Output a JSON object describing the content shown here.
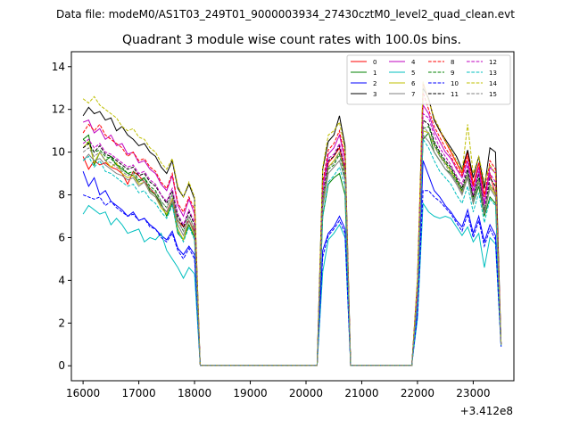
{
  "chart_data": {
    "type": "line",
    "suptitle": "Data file: modeM0/AS1T03_249T01_9000003934_27430cztM0_level2_quad_clean.evt",
    "title": "Quadrant 3 module wise count rates with 100.0s bins.",
    "xlabel": "",
    "ylabel": "",
    "x_offset_label": "+3.412e8",
    "xlim": [
      15790,
      23730
    ],
    "ylim": [
      -0.7,
      14.7
    ],
    "x_ticks": [
      16000,
      17000,
      18000,
      19000,
      20000,
      21000,
      22000,
      23000
    ],
    "x_tick_labels": [
      "16000",
      "17000",
      "18000",
      "19000",
      "20000",
      "21000",
      "22000",
      "23000"
    ],
    "y_ticks": [
      0,
      2,
      4,
      6,
      8,
      10,
      12,
      14
    ],
    "y_tick_labels": [
      "0",
      "2",
      "4",
      "6",
      "8",
      "10",
      "12",
      "14"
    ],
    "grid": false,
    "legend_position": "top-right",
    "legend_columns": 4,
    "bin_width_s": 100,
    "segments": [
      {
        "start": 16000,
        "end": 18100
      },
      {
        "gap_start": 18100,
        "gap_end": 20200
      },
      {
        "start": 20200,
        "end": 20800
      },
      {
        "gap_start": 20800,
        "gap_end": 21900
      },
      {
        "start": 21900,
        "end": 23500
      }
    ],
    "series": [
      {
        "name": "0",
        "color": "#ff0000",
        "dash": "solid",
        "seg1": [
          9.8,
          9.2,
          9.6,
          9.4,
          9.5,
          9.3,
          9.2,
          9.0,
          8.5,
          9.1,
          8.9,
          8.6,
          8.3,
          8.0,
          7.5,
          7.2,
          7.8,
          6.8,
          6.5,
          6.8,
          6.3,
          0.1
        ],
        "seg2": [
          0.1,
          7.5,
          9.5,
          9.8,
          10.2,
          9.2,
          0.1
        ],
        "seg3": [
          0.1,
          3.5,
          13.2,
          12.5,
          11.5,
          11.0,
          10.5,
          10.0,
          9.5,
          9.0,
          10.0,
          8.5,
          9.5,
          8.0,
          9.0,
          8.0,
          1.0
        ]
      },
      {
        "name": "1",
        "color": "#008000",
        "dash": "solid",
        "seg1": [
          10.6,
          10.8,
          9.4,
          10.0,
          9.6,
          9.8,
          9.4,
          9.2,
          9.0,
          8.9,
          8.6,
          8.8,
          8.2,
          8.0,
          7.6,
          7.0,
          7.6,
          6.2,
          5.9,
          6.6,
          6.0,
          0.1
        ],
        "seg2": [
          0.1,
          7.0,
          8.5,
          8.8,
          9.0,
          8.0,
          0.1
        ],
        "seg3": [
          0.1,
          3.0,
          10.6,
          10.9,
          10.0,
          9.6,
          9.2,
          9.0,
          8.6,
          8.2,
          8.8,
          7.6,
          8.4,
          7.0,
          7.9,
          7.6,
          1.0
        ]
      },
      {
        "name": "2",
        "color": "#0000ff",
        "dash": "solid",
        "seg1": [
          9.1,
          8.4,
          8.8,
          8.0,
          8.2,
          7.7,
          7.5,
          7.3,
          7.0,
          7.2,
          6.8,
          6.9,
          6.6,
          6.4,
          6.1,
          5.9,
          6.3,
          5.5,
          5.2,
          5.6,
          5.2,
          0.1
        ],
        "seg2": [
          0.1,
          5.4,
          6.2,
          6.5,
          7.0,
          6.4,
          0.1
        ],
        "seg3": [
          0.1,
          2.5,
          9.6,
          8.9,
          8.2,
          7.9,
          7.5,
          7.2,
          6.8,
          6.5,
          7.3,
          6.2,
          7.0,
          5.8,
          6.6,
          6.1,
          0.9
        ]
      },
      {
        "name": "3",
        "color": "#000000",
        "dash": "solid",
        "seg1": [
          11.7,
          12.1,
          11.8,
          11.9,
          11.5,
          11.6,
          11.0,
          11.2,
          10.8,
          10.6,
          10.3,
          10.4,
          10.0,
          9.8,
          9.3,
          9.0,
          9.6,
          8.3,
          7.9,
          8.5,
          7.8,
          0.1
        ],
        "seg2": [
          0.1,
          9.2,
          10.5,
          10.8,
          11.7,
          10.3,
          0.1
        ],
        "seg3": [
          0.1,
          4.0,
          13.0,
          12.5,
          11.5,
          11.0,
          10.6,
          10.2,
          9.8,
          9.2,
          10.1,
          8.8,
          9.8,
          8.3,
          10.2,
          10.0,
          1.0
        ]
      },
      {
        "name": "4",
        "color": "#bf00bf",
        "dash": "solid",
        "seg1": [
          11.4,
          11.5,
          10.9,
          11.1,
          10.6,
          10.8,
          10.3,
          10.4,
          9.9,
          10.0,
          9.5,
          9.6,
          9.2,
          9.0,
          8.5,
          8.2,
          8.9,
          7.5,
          7.0,
          7.8,
          7.1,
          0.1
        ],
        "seg2": [
          0.1,
          8.4,
          9.9,
          10.2,
          10.8,
          9.6,
          0.1
        ],
        "seg3": [
          0.1,
          3.8,
          12.2,
          11.8,
          11.0,
          10.5,
          10.0,
          9.7,
          9.2,
          8.8,
          9.6,
          8.2,
          9.3,
          7.6,
          9.3,
          9.0,
          1.0
        ]
      },
      {
        "name": "5",
        "color": "#00bfbf",
        "dash": "solid",
        "seg1": [
          7.1,
          7.5,
          7.3,
          7.1,
          7.2,
          6.6,
          6.9,
          6.6,
          6.2,
          6.3,
          6.4,
          5.8,
          6.0,
          5.9,
          6.2,
          5.4,
          5.0,
          4.6,
          4.1,
          4.6,
          4.3,
          0.1
        ],
        "seg2": [
          0.1,
          4.4,
          5.9,
          6.2,
          6.6,
          6.0,
          0.1
        ],
        "seg3": [
          0.1,
          2.2,
          7.6,
          7.2,
          7.0,
          6.9,
          7.0,
          6.9,
          6.5,
          6.1,
          6.5,
          5.8,
          6.2,
          4.6,
          6.0,
          5.7,
          0.9
        ]
      },
      {
        "name": "6",
        "color": "#bfbf00",
        "dash": "solid",
        "seg1": [
          10.2,
          10.5,
          9.5,
          10.0,
          9.6,
          9.3,
          9.5,
          9.0,
          8.8,
          8.9,
          8.5,
          8.6,
          8.1,
          7.9,
          7.4,
          7.1,
          7.8,
          6.4,
          5.9,
          6.8,
          6.1,
          0.1
        ],
        "seg2": [
          0.1,
          7.6,
          9.3,
          9.6,
          10.0,
          9.1,
          0.1
        ],
        "seg3": [
          0.1,
          3.2,
          11.0,
          10.9,
          10.3,
          9.8,
          9.5,
          9.1,
          8.7,
          8.1,
          8.9,
          7.7,
          8.7,
          7.2,
          8.4,
          8.0,
          1.0
        ]
      },
      {
        "name": "7",
        "color": "#808080",
        "dash": "solid",
        "seg1": [
          9.6,
          9.9,
          9.6,
          9.7,
          9.4,
          9.2,
          9.0,
          8.9,
          8.7,
          8.8,
          8.4,
          8.6,
          8.1,
          7.9,
          7.5,
          7.2,
          7.7,
          6.6,
          6.1,
          6.8,
          6.2,
          0.1
        ],
        "seg2": [
          0.1,
          7.4,
          9.0,
          9.3,
          9.6,
          8.7,
          0.1
        ],
        "seg3": [
          0.1,
          3.0,
          10.8,
          10.5,
          10.0,
          9.6,
          9.2,
          8.9,
          8.5,
          8.0,
          8.8,
          7.6,
          8.6,
          7.1,
          8.3,
          7.9,
          1.0
        ]
      },
      {
        "name": "8",
        "color": "#ff0000",
        "dash": "dashed",
        "seg1": [
          10.9,
          11.3,
          11.0,
          11.3,
          10.8,
          10.6,
          10.4,
          10.2,
          9.8,
          10.0,
          9.6,
          9.7,
          9.3,
          9.1,
          8.6,
          8.3,
          9.0,
          7.6,
          7.2,
          7.9,
          7.3,
          0.1
        ],
        "seg2": [
          0.1,
          8.6,
          10.1,
          10.4,
          11.0,
          9.8,
          0.1
        ],
        "seg3": [
          0.1,
          3.8,
          12.8,
          12.0,
          11.2,
          10.7,
          10.2,
          9.8,
          9.3,
          8.9,
          9.8,
          8.4,
          9.5,
          7.9,
          9.6,
          9.2,
          1.0
        ]
      },
      {
        "name": "9",
        "color": "#008000",
        "dash": "dashed",
        "seg1": [
          10.6,
          10.4,
          10.0,
          10.1,
          9.8,
          9.7,
          9.4,
          9.3,
          9.0,
          9.1,
          8.7,
          8.8,
          8.4,
          8.2,
          7.7,
          7.4,
          8.0,
          6.8,
          6.3,
          7.0,
          6.4,
          0.1
        ],
        "seg2": [
          0.1,
          7.8,
          9.2,
          9.4,
          9.9,
          8.8,
          0.1
        ],
        "seg3": [
          0.1,
          3.3,
          11.1,
          11.2,
          10.4,
          9.9,
          9.5,
          9.2,
          8.7,
          8.2,
          9.0,
          7.8,
          8.8,
          7.3,
          8.5,
          8.1,
          1.0
        ]
      },
      {
        "name": "10",
        "color": "#0000ff",
        "dash": "dashed",
        "seg1": [
          8.0,
          7.9,
          7.8,
          7.9,
          7.5,
          7.7,
          7.4,
          7.2,
          7.0,
          7.1,
          6.8,
          6.9,
          6.5,
          6.4,
          6.0,
          5.8,
          6.2,
          5.4,
          5.0,
          5.5,
          5.0,
          0.1
        ],
        "seg2": [
          0.1,
          5.1,
          6.1,
          6.4,
          6.8,
          6.2,
          0.1
        ],
        "seg3": [
          0.1,
          2.4,
          8.2,
          8.2,
          7.9,
          7.7,
          7.4,
          7.1,
          6.7,
          6.3,
          7.1,
          6.0,
          6.8,
          5.6,
          6.4,
          5.9,
          0.9
        ]
      },
      {
        "name": "11",
        "color": "#000000",
        "dash": "dashed",
        "seg1": [
          10.2,
          10.4,
          10.0,
          10.3,
          9.9,
          9.8,
          9.6,
          9.4,
          9.2,
          9.3,
          8.9,
          9.0,
          8.6,
          8.4,
          8.0,
          7.6,
          8.2,
          7.0,
          6.5,
          7.2,
          6.6,
          0.1
        ],
        "seg2": [
          0.1,
          8.0,
          9.6,
          9.8,
          10.3,
          9.2,
          0.1
        ],
        "seg3": [
          0.1,
          3.4,
          11.5,
          11.3,
          10.5,
          10.0,
          9.6,
          9.3,
          8.8,
          8.3,
          9.2,
          7.9,
          9.0,
          7.2,
          8.8,
          8.4,
          1.0
        ]
      },
      {
        "name": "12",
        "color": "#bf00bf",
        "dash": "dashed",
        "seg1": [
          10.4,
          10.6,
          10.2,
          10.4,
          10.0,
          9.9,
          9.7,
          9.5,
          9.3,
          9.4,
          9.0,
          9.1,
          8.7,
          8.5,
          8.0,
          7.7,
          8.3,
          7.1,
          6.6,
          7.3,
          6.7,
          0.1
        ],
        "seg2": [
          0.1,
          8.1,
          9.7,
          9.9,
          10.4,
          9.3,
          0.1
        ],
        "seg3": [
          0.1,
          3.5,
          11.8,
          11.6,
          10.8,
          10.2,
          9.8,
          9.4,
          8.9,
          8.5,
          9.4,
          8.0,
          9.1,
          7.5,
          9.0,
          8.6,
          1.0
        ]
      },
      {
        "name": "13",
        "color": "#00bfbf",
        "dash": "dashed",
        "seg1": [
          9.6,
          9.8,
          9.3,
          9.6,
          9.1,
          9.0,
          8.8,
          8.6,
          8.4,
          8.5,
          8.1,
          8.2,
          7.8,
          7.6,
          7.2,
          6.9,
          7.5,
          6.3,
          5.8,
          6.5,
          5.9,
          0.1
        ],
        "seg2": [
          0.1,
          7.0,
          8.6,
          8.9,
          9.3,
          8.4,
          0.1
        ],
        "seg3": [
          0.1,
          3.0,
          10.6,
          10.2,
          9.6,
          9.1,
          8.8,
          8.5,
          8.0,
          7.6,
          8.4,
          7.2,
          8.1,
          6.7,
          7.8,
          7.5,
          1.0
        ]
      },
      {
        "name": "14",
        "color": "#bfbf00",
        "dash": "dashed",
        "seg1": [
          12.5,
          12.3,
          12.6,
          12.2,
          12.0,
          11.8,
          11.6,
          11.2,
          11.0,
          11.1,
          10.7,
          10.6,
          10.2,
          10.0,
          9.5,
          9.2,
          9.7,
          8.4,
          7.9,
          8.6,
          7.9,
          0.1
        ],
        "seg2": [
          0.1,
          9.3,
          10.8,
          11.0,
          11.4,
          10.1,
          0.1
        ],
        "seg3": [
          0.1,
          4.1,
          13.3,
          12.4,
          11.6,
          11.1,
          10.5,
          10.1,
          9.6,
          9.1,
          11.3,
          9.0,
          9.8,
          8.6,
          9.4,
          9.0,
          1.0
        ]
      },
      {
        "name": "15",
        "color": "#808080",
        "dash": "dashed",
        "seg1": [
          10.0,
          10.2,
          9.8,
          10.0,
          9.6,
          9.5,
          9.3,
          9.1,
          8.9,
          9.0,
          8.6,
          8.7,
          8.3,
          8.1,
          7.7,
          7.4,
          8.0,
          6.8,
          6.3,
          7.0,
          6.4,
          0.1
        ],
        "seg2": [
          0.1,
          7.7,
          9.3,
          9.5,
          10.0,
          9.0,
          0.1
        ],
        "seg3": [
          0.1,
          3.2,
          11.2,
          10.9,
          10.3,
          9.8,
          9.4,
          9.0,
          8.6,
          8.1,
          9.0,
          7.7,
          8.7,
          7.2,
          8.5,
          8.1,
          1.0
        ]
      }
    ]
  }
}
